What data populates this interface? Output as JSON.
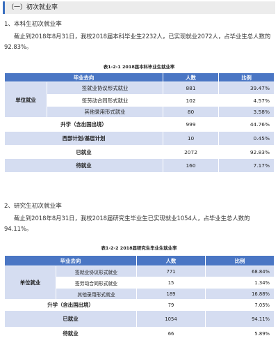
{
  "section_title": "（一）初次就业率",
  "sub1": "1、本科生初次就业率",
  "para1": "截止到2018年8月31日，我校2018届本科毕业生2232人，已实现就业2072人，占毕业生总人数的92.83%。",
  "cap1": "表1-2-1 2018届本科毕业生就业率",
  "table1": {
    "headers": [
      "毕业去向",
      "人数",
      "比例"
    ],
    "group_label": "单位就业",
    "sub_rows": [
      {
        "label": "签就业协议形式就业",
        "count": "881",
        "pct": "39.47%"
      },
      {
        "label": "签劳动合同形式就业",
        "count": "102",
        "pct": "4.57%"
      },
      {
        "label": "其他录用形式就业",
        "count": "80",
        "pct": "3.58%"
      }
    ],
    "rows": [
      {
        "label": "升学（含出国出境）",
        "count": "999",
        "pct": "44.76%"
      },
      {
        "label": "西部计划/基层计划",
        "count": "10",
        "pct": "0.45%"
      },
      {
        "label": "已就业",
        "count": "2072",
        "pct": "92.83%"
      },
      {
        "label": "待就业",
        "count": "160",
        "pct": "7.17%"
      }
    ]
  },
  "sub2": "2、研究生初次就业率",
  "para2": "截止到2018年8月31日，我校2018届研究生毕业生已实现就业1054人，占毕业生总人数的94.11%。",
  "cap2": "表1-2-2 2018届研究生毕业生就业率",
  "table2": {
    "headers": [
      "毕业去向",
      "人数",
      "比例"
    ],
    "group_label": "单位就业",
    "sub_rows": [
      {
        "label": "签就业协议形式就业",
        "count": "771",
        "pct": "68.84%"
      },
      {
        "label": "签劳动合同形式就业",
        "count": "15",
        "pct": "1.34%"
      },
      {
        "label": "其他录用形式就业",
        "count": "189",
        "pct": "16.88%"
      }
    ],
    "rows": [
      {
        "label": "升学（含出国出境）",
        "count": "79",
        "pct": "7.05%"
      },
      {
        "label": "已就业",
        "count": "1054",
        "pct": "94.11%"
      },
      {
        "label": "待就业",
        "count": "66",
        "pct": "5.89%"
      }
    ]
  }
}
